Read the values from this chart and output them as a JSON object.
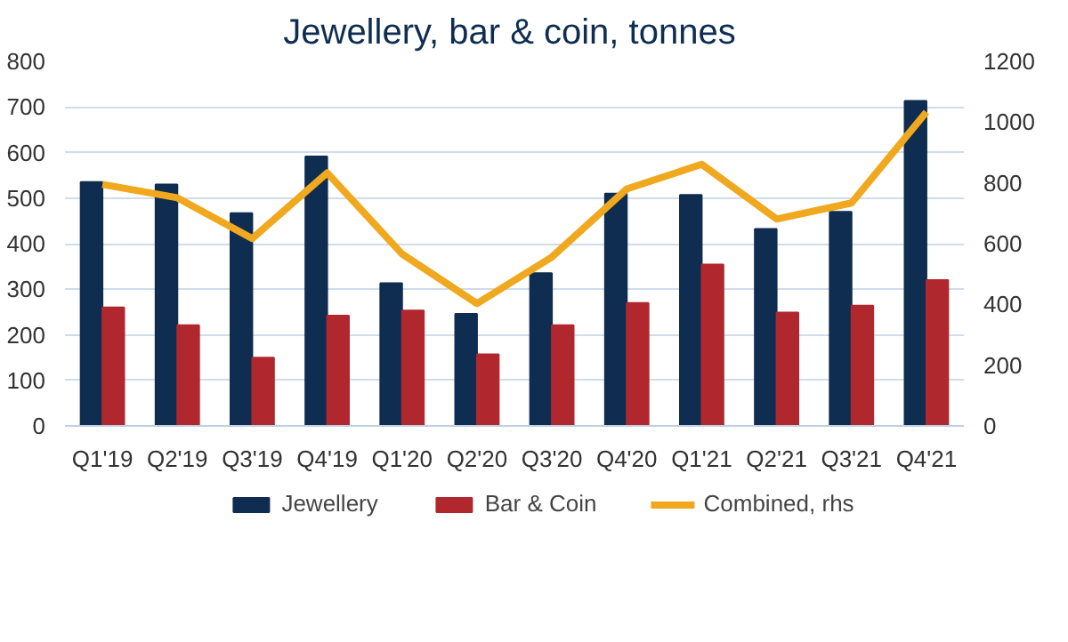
{
  "chart_data": {
    "type": "bar",
    "title": "Jewellery,  bar & coin, tonnes",
    "categories": [
      "Q1'19",
      "Q2'19",
      "Q3'19",
      "Q4'19",
      "Q1'20",
      "Q2'20",
      "Q3'20",
      "Q4'20",
      "Q1'21",
      "Q2'21",
      "Q3'21",
      "Q4'21"
    ],
    "series": [
      {
        "name": "Jewellery",
        "color": "#0e2d50",
        "values": [
          535,
          530,
          467,
          591,
          313,
          246,
          335,
          510,
          507,
          432,
          470,
          713
        ]
      },
      {
        "name": "Bar & Coin",
        "color": "#b0282e",
        "values": [
          260,
          221,
          150,
          242,
          253,
          157,
          221,
          270,
          354,
          249,
          264,
          320
        ]
      },
      {
        "name": "Combined, rhs",
        "type": "line",
        "axis": "y2",
        "color": "#f0a81e",
        "values": [
          795,
          751,
          617,
          833,
          566,
          403,
          556,
          780,
          861,
          681,
          734,
          1033
        ]
      }
    ],
    "ylim": [
      0,
      800
    ],
    "yticks": [
      0,
      100,
      200,
      300,
      400,
      500,
      600,
      700,
      800
    ],
    "y2lim": [
      0,
      1200
    ],
    "y2ticks": [
      0,
      200,
      400,
      600,
      800,
      1000,
      1200
    ],
    "grid": "y",
    "legend": "bottom"
  }
}
